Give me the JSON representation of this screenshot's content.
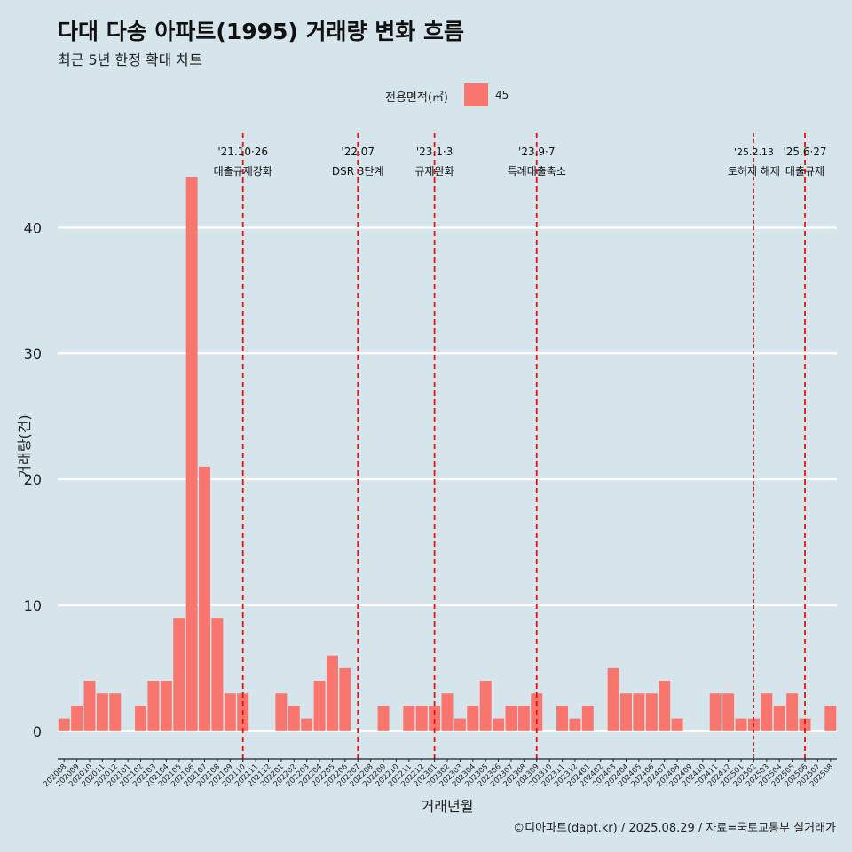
{
  "title": "다대 다송 아파트(1995) 거래량 변화 흐름",
  "subtitle": "최근 5년 한정 확대 차트",
  "legend": {
    "title": "전용면적(㎡)",
    "label": "45",
    "color": "#f8766d"
  },
  "caption": "©디아파트(dapt.kr) / 2025.08.29 / 자료=국토교통부 실거래가",
  "colors": {
    "background": "#d6e4ec",
    "bar": "#f8766d",
    "grid": "#ffffff",
    "annotation": "#e8120c"
  },
  "chart_data": {
    "type": "bar",
    "title": "다대 다송 아파트(1995) 거래량 변화 흐름",
    "subtitle": "최근 5년 한정 확대 차트",
    "xlabel": "거래년월",
    "ylabel": "거래량(건)",
    "ylim": [
      -2.2,
      47.5
    ],
    "yticks": [
      0,
      10,
      20,
      30,
      40
    ],
    "categories": [
      "202008",
      "202009",
      "202010",
      "202011",
      "202012",
      "202101",
      "202102",
      "202103",
      "202104",
      "202105",
      "202106",
      "202107",
      "202108",
      "202109",
      "202110",
      "202111",
      "202112",
      "202201",
      "202202",
      "202203",
      "202204",
      "202205",
      "202206",
      "202207",
      "202208",
      "202209",
      "202210",
      "202211",
      "202212",
      "202301",
      "202302",
      "202303",
      "202304",
      "202305",
      "202306",
      "202307",
      "202308",
      "202309",
      "202310",
      "202311",
      "202312",
      "202401",
      "202402",
      "202403",
      "202404",
      "202405",
      "202406",
      "202407",
      "202408",
      "202409",
      "202410",
      "202411",
      "202412",
      "202501",
      "202502",
      "202503",
      "202504",
      "202505",
      "202506",
      "202507",
      "202508"
    ],
    "series": [
      {
        "name": "45",
        "values": [
          1,
          2,
          4,
          3,
          3,
          0,
          2,
          4,
          4,
          9,
          44,
          21,
          9,
          3,
          3,
          0,
          0,
          3,
          2,
          1,
          4,
          6,
          5,
          0,
          0,
          2,
          0,
          2,
          2,
          2,
          3,
          1,
          2,
          4,
          1,
          2,
          2,
          3,
          0,
          2,
          1,
          2,
          0,
          5,
          3,
          3,
          3,
          4,
          1,
          0,
          0,
          3,
          3,
          1,
          1,
          3,
          2,
          3,
          1,
          0,
          2
        ]
      }
    ],
    "annotations": [
      {
        "position": 14,
        "line1": "'21.10·26",
        "line2": "대출규제강화",
        "style": "heavy"
      },
      {
        "position": 23,
        "line1": "'22.07",
        "line2": "DSR 3단계",
        "style": "heavy"
      },
      {
        "position": 29,
        "line1": "'23.1·3",
        "line2": "규제완화",
        "style": "heavy"
      },
      {
        "position": 37,
        "line1": "'23.9·7",
        "line2": "특례대출축소",
        "style": "heavy"
      },
      {
        "position": 54,
        "line1": "'25.2.13",
        "line2": "토허제 해제",
        "style": "light"
      },
      {
        "position": 58,
        "line1": "'25.6·27",
        "line2": "대출규제",
        "style": "heavy"
      }
    ]
  }
}
